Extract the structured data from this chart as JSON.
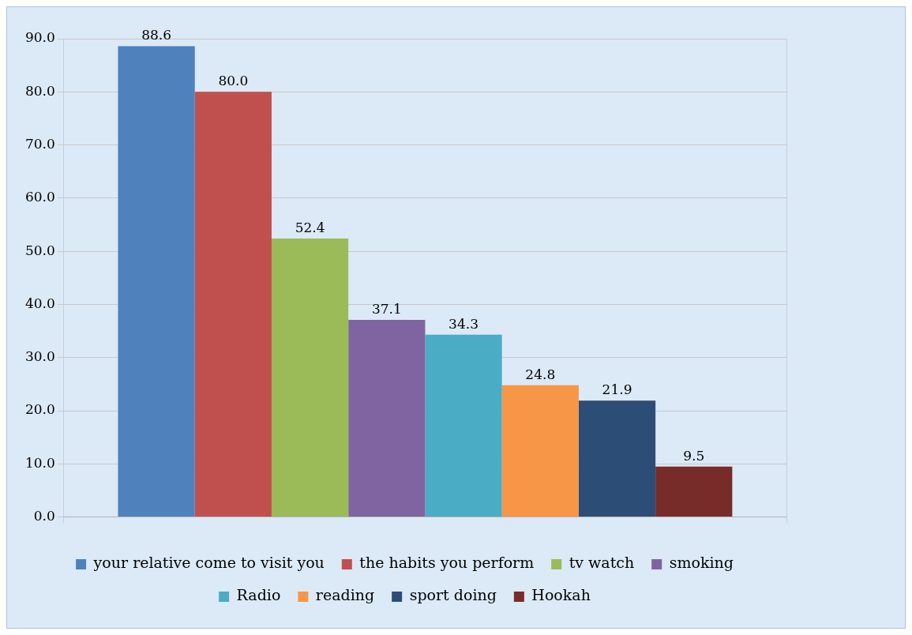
{
  "chart_data": {
    "type": "bar",
    "categories": [
      null
    ],
    "series": [
      {
        "name": "your relative come to visit you",
        "color": "#4f81bd",
        "values": [
          88.6
        ],
        "value_labels": [
          "88.6"
        ]
      },
      {
        "name": "the habits you perform",
        "color": "#c0504d",
        "values": [
          80.0
        ],
        "value_labels": [
          "80.0"
        ]
      },
      {
        "name": "tv watch",
        "color": "#9bbb59",
        "values": [
          52.4
        ],
        "value_labels": [
          "52.4"
        ]
      },
      {
        "name": "smoking",
        "color": "#8064a2",
        "values": [
          37.1
        ],
        "value_labels": [
          "37.1"
        ]
      },
      {
        "name": "Radio",
        "color": "#4bacc6",
        "values": [
          34.3
        ],
        "value_labels": [
          "34.3"
        ]
      },
      {
        "name": "reading",
        "color": "#f79646",
        "values": [
          24.8
        ],
        "value_labels": [
          "24.8"
        ]
      },
      {
        "name": "sport doing",
        "color": "#2c4d75",
        "values": [
          21.9
        ],
        "value_labels": [
          "21.9"
        ]
      },
      {
        "name": "Hookah",
        "color": "#772c2a",
        "values": [
          9.5
        ],
        "value_labels": [
          "9.5"
        ]
      }
    ],
    "ylim": [
      0,
      90
    ],
    "yticks": [
      {
        "value": 0,
        "label": "0.0"
      },
      {
        "value": 10,
        "label": "10.0"
      },
      {
        "value": 20,
        "label": "20.0"
      },
      {
        "value": 30,
        "label": "30.0"
      },
      {
        "value": 40,
        "label": "40.0"
      },
      {
        "value": 50,
        "label": "50.0"
      },
      {
        "value": 60,
        "label": "60.0"
      },
      {
        "value": 70,
        "label": "70.0"
      },
      {
        "value": 80,
        "label": "80.0"
      },
      {
        "value": 90,
        "label": "90.0"
      }
    ],
    "grid": true,
    "legend": "bottom"
  }
}
